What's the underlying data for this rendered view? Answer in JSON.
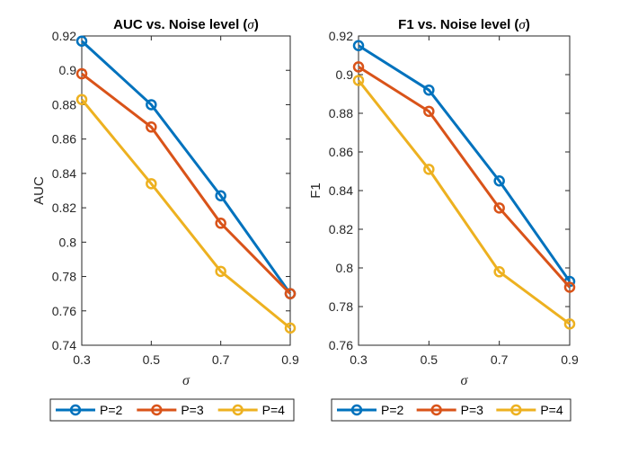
{
  "chart_data": [
    {
      "type": "line",
      "title": "AUC vs. Noise level (",
      "title_symbol": "σ",
      "title_suffix": ")",
      "xlabel": "σ",
      "ylabel": "AUC",
      "x": [
        0.3,
        0.5,
        0.7,
        0.9
      ],
      "xticks": [
        "0.3",
        "0.5",
        "0.7",
        "0.9"
      ],
      "xlim": [
        0.3,
        0.9
      ],
      "ylim": [
        0.74,
        0.92
      ],
      "yticks": [
        "0.74",
        "0.76",
        "0.78",
        "0.8",
        "0.82",
        "0.84",
        "0.86",
        "0.88",
        "0.9",
        "0.92"
      ],
      "grid": false,
      "legend_position": "bottom",
      "series": [
        {
          "name": "P=2",
          "color": "#0072BD",
          "values": [
            0.917,
            0.88,
            0.827,
            0.77
          ]
        },
        {
          "name": "P=3",
          "color": "#D95319",
          "values": [
            0.898,
            0.867,
            0.811,
            0.77
          ]
        },
        {
          "name": "P=4",
          "color": "#EDB120",
          "values": [
            0.883,
            0.834,
            0.783,
            0.75
          ]
        }
      ]
    },
    {
      "type": "line",
      "title": "F1 vs. Noise level (",
      "title_symbol": "σ",
      "title_suffix": ")",
      "xlabel": "σ",
      "ylabel": "F1",
      "x": [
        0.3,
        0.5,
        0.7,
        0.9
      ],
      "xticks": [
        "0.3",
        "0.5",
        "0.7",
        "0.9"
      ],
      "xlim": [
        0.3,
        0.9
      ],
      "ylim": [
        0.76,
        0.92
      ],
      "yticks": [
        "0.76",
        "0.78",
        "0.8",
        "0.82",
        "0.84",
        "0.86",
        "0.88",
        "0.9",
        "0.92"
      ],
      "grid": false,
      "legend_position": "bottom",
      "series": [
        {
          "name": "P=2",
          "color": "#0072BD",
          "values": [
            0.915,
            0.892,
            0.845,
            0.793
          ]
        },
        {
          "name": "P=3",
          "color": "#D95319",
          "values": [
            0.904,
            0.881,
            0.831,
            0.79
          ]
        },
        {
          "name": "P=4",
          "color": "#EDB120",
          "values": [
            0.897,
            0.851,
            0.798,
            0.771
          ]
        }
      ]
    }
  ]
}
